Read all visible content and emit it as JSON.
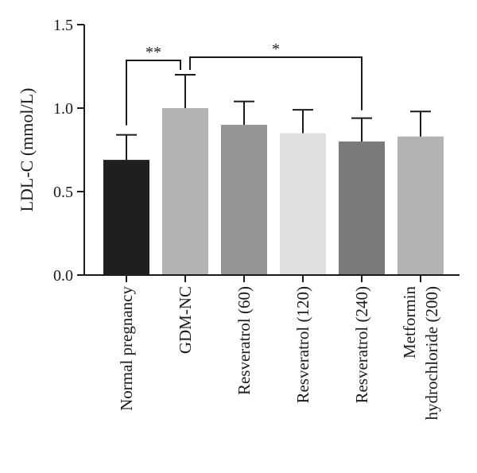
{
  "chart_data": {
    "type": "bar",
    "title": "",
    "ylabel": "LDL-C (mmol/L)",
    "xlabel": "",
    "ylim": [
      0,
      1.5
    ],
    "yticks": [
      {
        "value": 0.0,
        "label": "0.0"
      },
      {
        "value": 0.5,
        "label": "0.5"
      },
      {
        "value": 1.0,
        "label": "1.0"
      },
      {
        "value": 1.5,
        "label": "1.5"
      }
    ],
    "categories": [
      {
        "lines": [
          "Normal pregnancy"
        ]
      },
      {
        "lines": [
          "GDM-NC"
        ]
      },
      {
        "lines": [
          "Resveratrol (60)"
        ]
      },
      {
        "lines": [
          "Resveratrol (120)"
        ]
      },
      {
        "lines": [
          "Resveratrol (240)"
        ]
      },
      {
        "lines": [
          "Metformin",
          "hydrochloride (200)"
        ]
      }
    ],
    "values": [
      0.69,
      1.0,
      0.9,
      0.85,
      0.8,
      0.83
    ],
    "errors": [
      0.15,
      0.2,
      0.14,
      0.14,
      0.14,
      0.15
    ],
    "colors": [
      "#1f1f1f",
      "#b3b3b3",
      "#969696",
      "#e0e0e0",
      "#7a7a7a",
      "#b3b3b3"
    ],
    "grid": false,
    "significance": [
      {
        "from": 0,
        "to": 1,
        "label": "**"
      },
      {
        "from": 1,
        "to": 4,
        "label": "*"
      }
    ]
  }
}
